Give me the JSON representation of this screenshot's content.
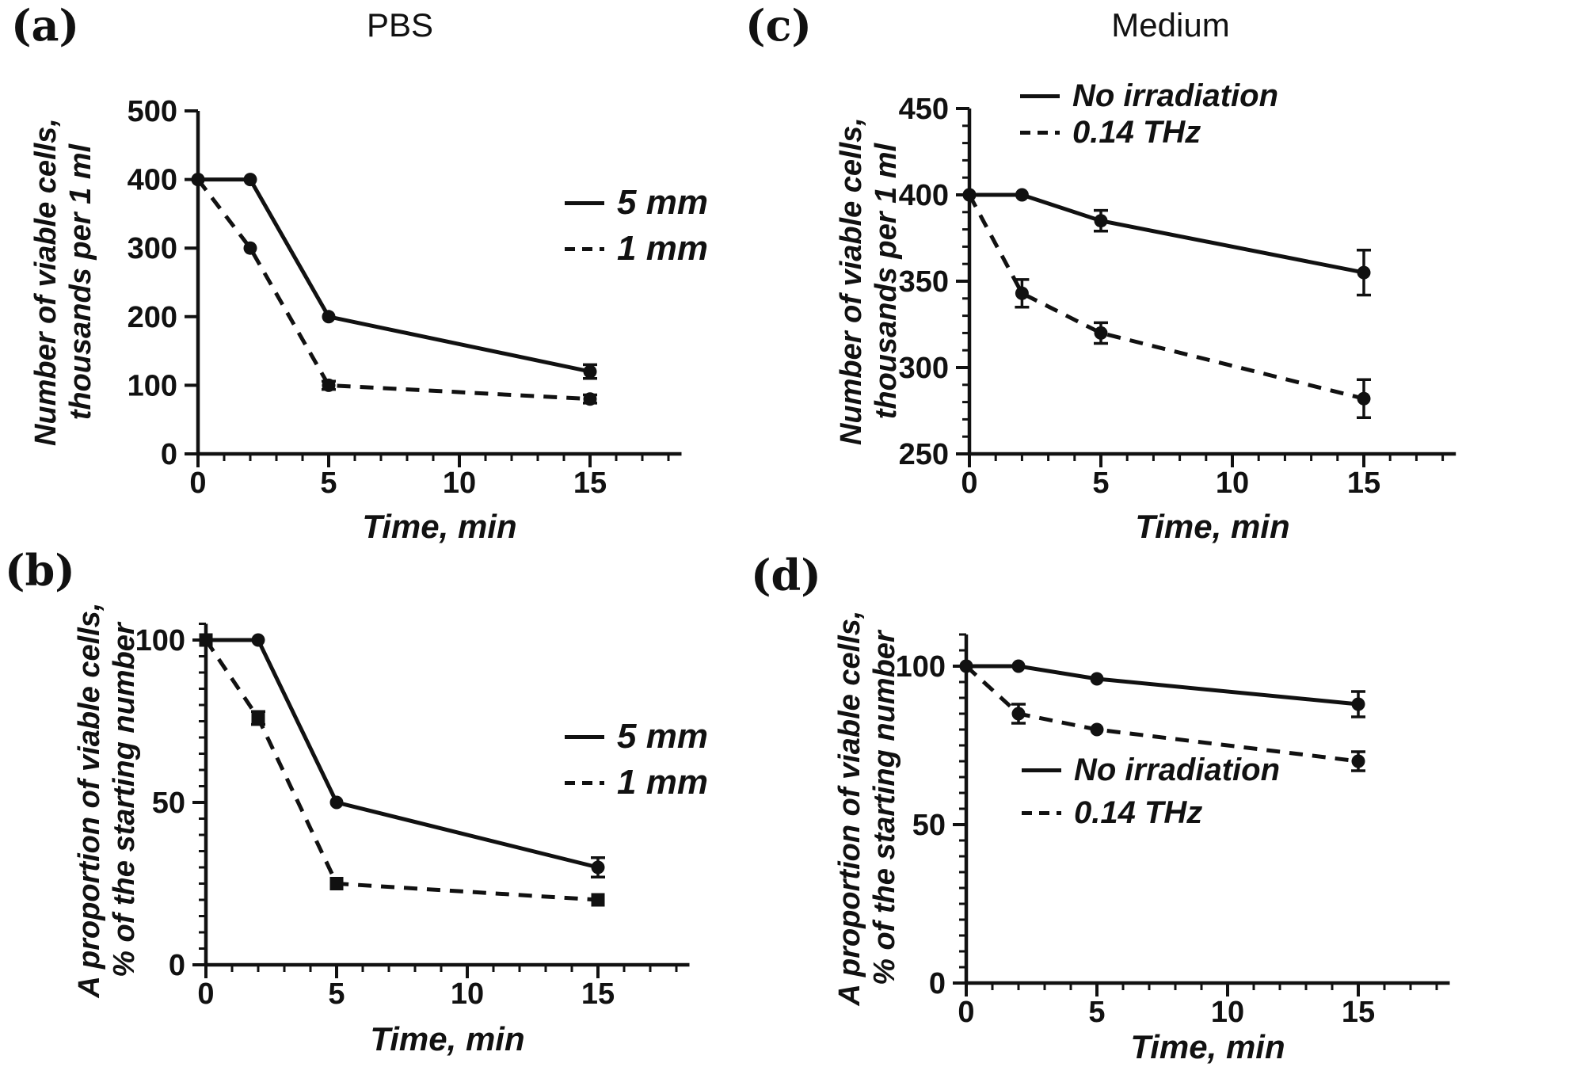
{
  "colors": {
    "ink": "#111111",
    "background": "#ffffff"
  },
  "chart_data": [
    {
      "type": "line",
      "panel_label": "(a)",
      "title": "PBS",
      "xlabel": "Time, min",
      "ylabel_line1": "Number of viable cells,",
      "ylabel_line2": "thousands per 1 ml",
      "x": [
        0,
        2,
        5,
        15
      ],
      "series": [
        {
          "name": "5 mm",
          "line": "solid",
          "marker": "circle",
          "values": [
            400,
            400,
            200,
            120
          ],
          "errors": [
            0,
            0,
            0,
            10
          ]
        },
        {
          "name": "1 mm",
          "line": "dashed",
          "marker": "circle",
          "values": [
            400,
            300,
            100,
            80
          ],
          "errors": [
            0,
            0,
            6,
            6
          ]
        }
      ],
      "xlim": [
        0,
        18.5
      ],
      "ylim": [
        0,
        500
      ],
      "xticks": [
        0,
        5,
        10,
        15
      ],
      "xminor_step": 1,
      "yticks": [
        0,
        100,
        200,
        300,
        400,
        500
      ],
      "yminor_step": null,
      "legend_position": "right-upper",
      "grid": false
    },
    {
      "type": "line",
      "panel_label": "(b)",
      "title": "",
      "xlabel": "Time, min",
      "ylabel_line1": "A proportion of viable cells,",
      "ylabel_line2": "% of the starting number",
      "x": [
        0,
        2,
        5,
        15
      ],
      "series": [
        {
          "name": "5 mm",
          "line": "solid",
          "marker": "circle",
          "values": [
            100,
            100,
            50,
            30
          ],
          "errors": [
            0,
            0,
            0,
            3
          ]
        },
        {
          "name": "1 mm",
          "line": "dashed",
          "marker": "square",
          "values": [
            100,
            76,
            25,
            20
          ],
          "errors": [
            0,
            2,
            0,
            0
          ]
        }
      ],
      "xlim": [
        0,
        18.5
      ],
      "ylim": [
        0,
        100
      ],
      "xticks": [
        0,
        5,
        10,
        15
      ],
      "xminor_step": 1,
      "yticks": [
        0,
        50,
        100
      ],
      "yminor_step": 5,
      "legend_position": "right-middle",
      "grid": false
    },
    {
      "type": "line",
      "panel_label": "(c)",
      "title": "Medium",
      "xlabel": "Time, min",
      "ylabel_line1": "Number of viable cells,",
      "ylabel_line2": "thousands per 1 ml",
      "x": [
        0,
        2,
        5,
        15
      ],
      "series": [
        {
          "name": "No irradiation",
          "line": "solid",
          "marker": "circle",
          "values": [
            400,
            400,
            385,
            355
          ],
          "errors": [
            0,
            0,
            6,
            13
          ]
        },
        {
          "name": "0.14 THz",
          "line": "dashed",
          "marker": "circle",
          "values": [
            400,
            343,
            320,
            282
          ],
          "errors": [
            0,
            8,
            6,
            11
          ]
        }
      ],
      "xlim": [
        0,
        18.5
      ],
      "ylim": [
        250,
        450
      ],
      "xticks": [
        0,
        5,
        10,
        15
      ],
      "xminor_step": 1,
      "yticks": [
        250,
        300,
        350,
        400,
        450
      ],
      "yminor_step": 10,
      "legend_position": "upper-right-inside",
      "grid": false
    },
    {
      "type": "line",
      "panel_label": "(d)",
      "title": "",
      "xlabel": "Time, min",
      "ylabel_line1": "A proportion of viable cells,",
      "ylabel_line2": "% of the starting number",
      "x": [
        0,
        2,
        5,
        15
      ],
      "series": [
        {
          "name": "No irradiation",
          "line": "solid",
          "marker": "circle",
          "values": [
            100,
            100,
            96,
            88
          ],
          "errors": [
            0,
            0,
            0,
            4
          ]
        },
        {
          "name": "0.14 THz",
          "line": "dashed",
          "marker": "circle",
          "values": [
            100,
            85,
            80,
            70
          ],
          "errors": [
            0,
            3,
            0,
            3
          ]
        }
      ],
      "xlim": [
        0,
        18.5
      ],
      "ylim": [
        0,
        100
      ],
      "xticks": [
        0,
        5,
        10,
        15
      ],
      "xminor_step": 1,
      "yticks": [
        0,
        50,
        100
      ],
      "yminor_step": 5,
      "legend_position": "lower-right-inside",
      "grid": false
    }
  ]
}
